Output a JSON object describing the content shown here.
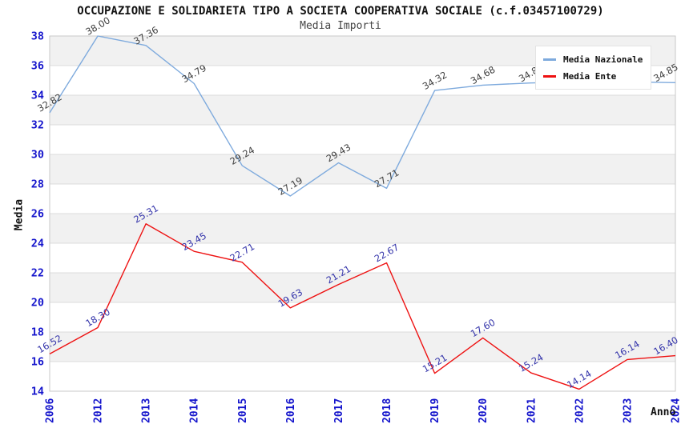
{
  "chart_data": {
    "type": "line",
    "title": "OCCUPAZIONE E SOLIDARIETA TIPO A SOCIETA COOPERATIVA SOCIALE (c.f.03457100729)",
    "subtitle": "Media Importi",
    "xlabel": "Anno",
    "ylabel": "Media",
    "ylim": [
      14,
      38
    ],
    "ytick_step": 2,
    "grid": "horizontal-bands-alternating",
    "legend_position": "top-right",
    "label_rotation_deg": -30,
    "tick_color": "#1515CC",
    "band_color": "#F1F1F1",
    "gridline_color": "#DCDCDC",
    "border_color": "#C9C9C9",
    "categories": [
      "2006",
      "2012",
      "2013",
      "2014",
      "2015",
      "2016",
      "2017",
      "2018",
      "2019",
      "2020",
      "2021",
      "2022",
      "2023",
      "2024"
    ],
    "series": [
      {
        "name": "Media Nazionale",
        "color": "#7EAADD",
        "label_color": "#3F3F3F",
        "values": [
          32.82,
          38.0,
          37.36,
          34.79,
          29.24,
          27.19,
          29.43,
          27.71,
          34.32,
          34.68,
          34.83,
          34.9,
          34.9,
          34.85
        ]
      },
      {
        "name": "Media Ente",
        "color": "#EE1111",
        "label_color": "#3333AA",
        "values": [
          16.52,
          18.3,
          25.31,
          23.45,
          22.71,
          19.63,
          21.21,
          22.67,
          15.21,
          17.6,
          15.24,
          14.14,
          16.14,
          16.4
        ]
      }
    ]
  }
}
